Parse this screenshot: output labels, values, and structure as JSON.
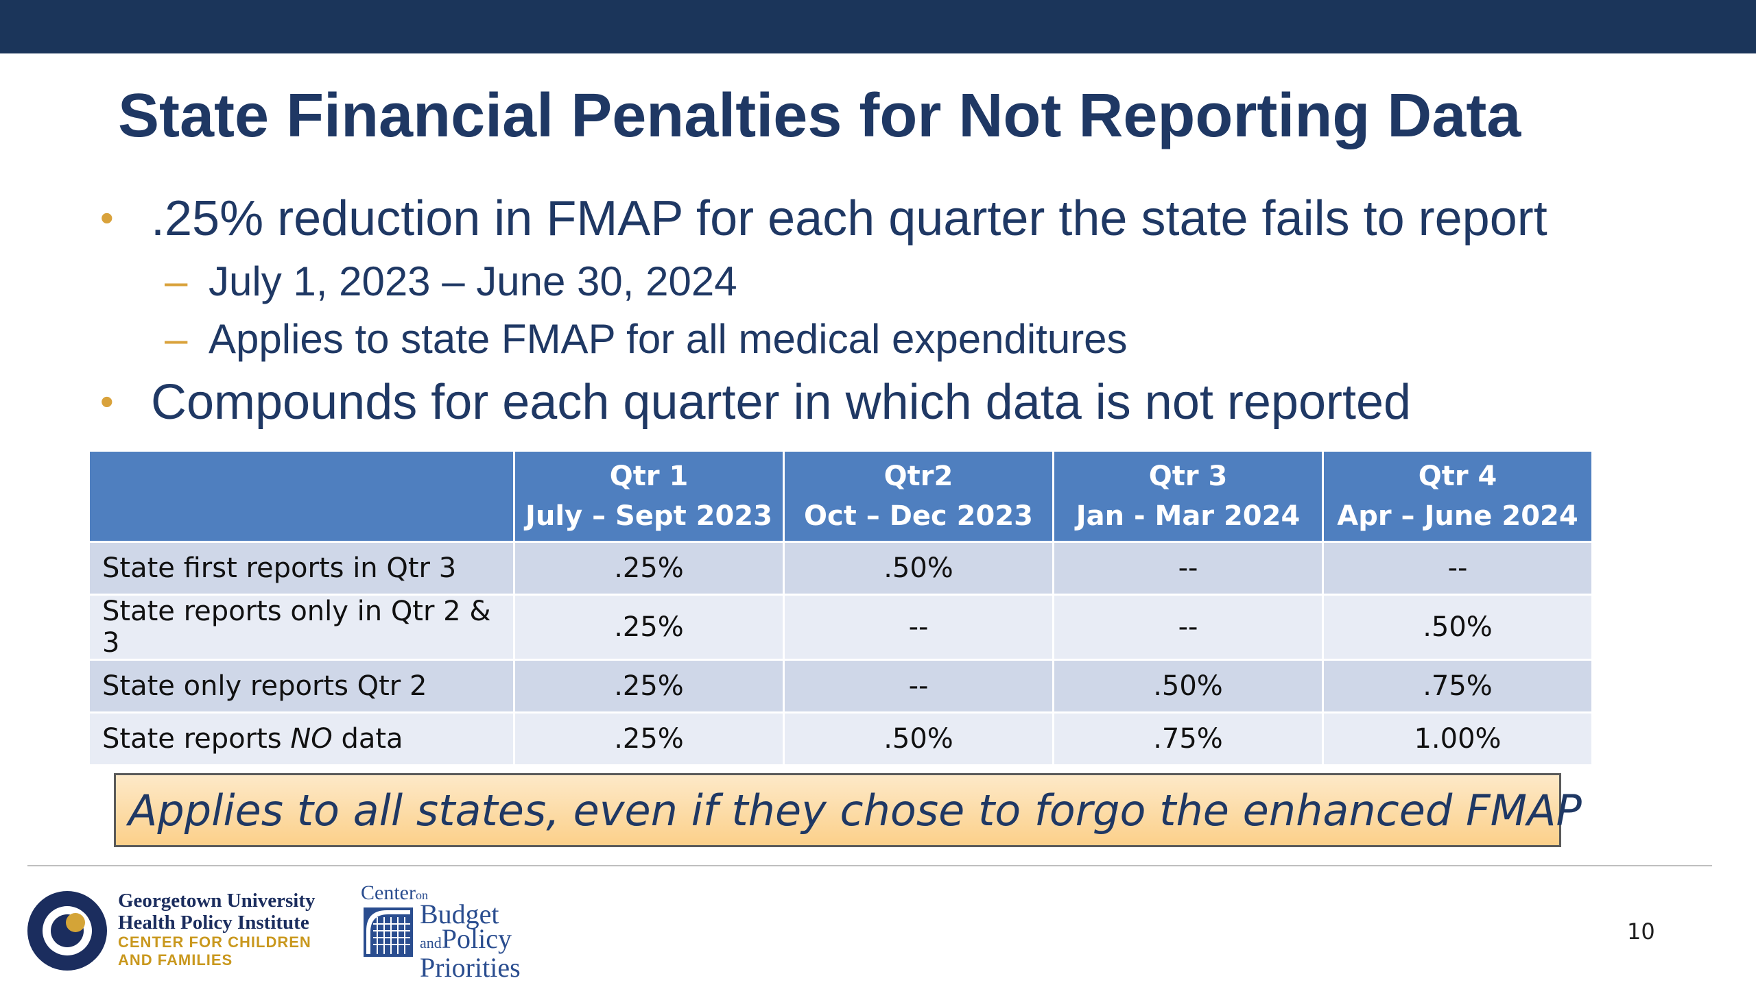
{
  "slide": {
    "title": "State Financial Penalties for Not Reporting Data",
    "bullets": [
      {
        "text": ".25% reduction in  FMAP for each quarter the state fails to report",
        "sub": [
          "July 1, 2023 – June 30, 2024",
          "Applies to state FMAP for all medical expenditures"
        ]
      },
      {
        "text": "Compounds for each quarter in which data is not reported"
      }
    ],
    "bullet_marker": "•",
    "sub_marker": "–",
    "table": {
      "headers": [
        {
          "line1": "",
          "line2": ""
        },
        {
          "line1": "Qtr 1",
          "line2": "July – Sept 2023"
        },
        {
          "line1": "Qtr2",
          "line2": "Oct – Dec 2023"
        },
        {
          "line1": "Qtr 3",
          "line2": "Jan - Mar 2024"
        },
        {
          "line1": "Qtr 4",
          "line2": "Apr – June 2024"
        }
      ],
      "rows": [
        {
          "label": "State first reports in Qtr 3",
          "cells": [
            ".25%",
            ".50%",
            "--",
            "--"
          ]
        },
        {
          "label": "State reports only in Qtr 2 & 3",
          "cells": [
            ".25%",
            "--",
            "--",
            ".50%"
          ]
        },
        {
          "label": "State only reports Qtr 2",
          "cells": [
            ".25%",
            "--",
            ".50%",
            ".75%"
          ]
        },
        {
          "label_pre": "State reports ",
          "label_em": "NO",
          "label_post": " data",
          "cells": [
            ".25%",
            ".50%",
            ".75%",
            "1.00%"
          ]
        }
      ]
    },
    "callout": "Applies to all states, even if they chose to forgo the enhanced FMAP",
    "page_number": "10"
  },
  "footer": {
    "gu": {
      "line1": "Georgetown University",
      "line2": "Health Policy Institute",
      "line3": "CENTER FOR CHILDREN",
      "line4": "AND FAMILIES",
      "icon": "georgetown-circle-logo"
    },
    "cbpp": {
      "center": "Center",
      "on": "on",
      "budget": "Budget",
      "and": "and",
      "policy": "Policy",
      "priorities": "Priorities",
      "icon": "cbpp-grid-logo"
    }
  },
  "colors": {
    "top_bar": "#1b355a",
    "title": "#1f3864",
    "bullet_marker": "#d9a23b",
    "table_header": "#4f7fbf",
    "row_dark": "#cfd7e8",
    "row_light": "#e8ecf5",
    "callout_top": "#fde9c8",
    "callout_bottom": "#fcd08a"
  }
}
